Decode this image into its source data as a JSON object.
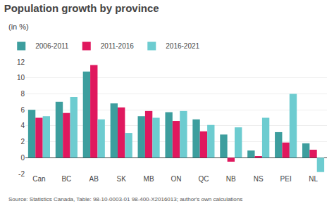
{
  "chart_data": {
    "type": "bar",
    "title": "Population growth by province",
    "subtitle": "(in %)",
    "source": "Source: Statistics Canada, Table: 98-10-0003-01 98-400-X2016013; author's own calculations",
    "categories": [
      "Can",
      "BC",
      "AB",
      "SK",
      "MB",
      "ON",
      "QC",
      "NB",
      "NS",
      "PEI",
      "NL"
    ],
    "series": [
      {
        "name": "2006-2011",
        "color": "#3d9e9e",
        "values": [
          6.0,
          7.0,
          10.8,
          6.8,
          5.2,
          5.7,
          4.8,
          2.9,
          0.9,
          3.2,
          1.8
        ]
      },
      {
        "name": "2011-2016",
        "color": "#e0185e",
        "values": [
          5.0,
          5.6,
          11.6,
          6.3,
          5.85,
          4.6,
          3.3,
          -0.5,
          0.2,
          1.9,
          1.0
        ]
      },
      {
        "name": "2016-2021",
        "color": "#6dccd0",
        "values": [
          5.2,
          7.6,
          4.8,
          3.1,
          5.0,
          5.85,
          4.1,
          3.8,
          5.0,
          8.0,
          -1.8
        ]
      }
    ],
    "ylim": [
      -2,
      12
    ],
    "yticks": [
      -2,
      0,
      2,
      4,
      6,
      8,
      10,
      12
    ],
    "grid": true,
    "legend": "upper left"
  }
}
